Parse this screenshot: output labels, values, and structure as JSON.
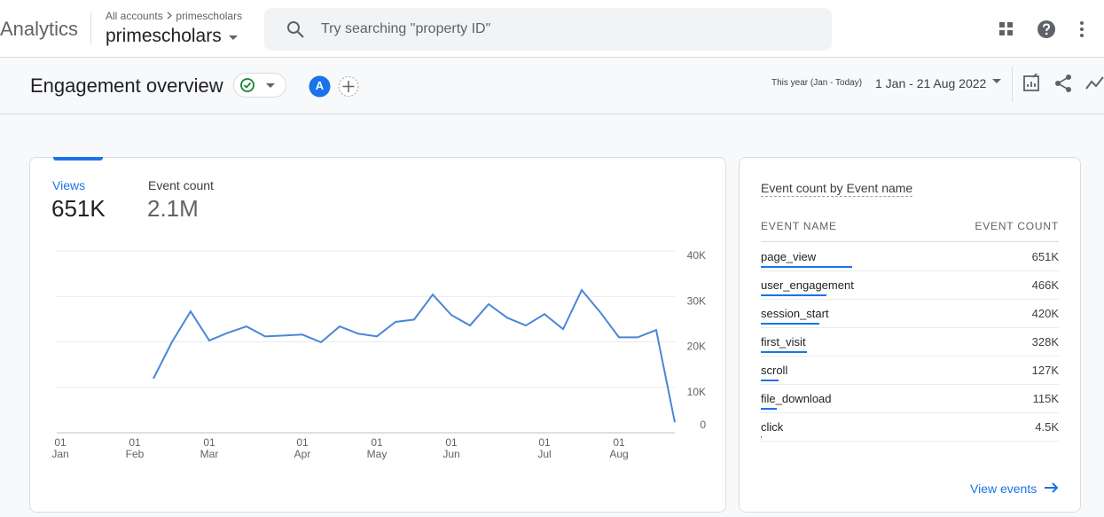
{
  "header": {
    "product": "Analytics",
    "breadcrumb": [
      "All accounts",
      "primescholars"
    ],
    "property": "primescholars",
    "search_placeholder": "Try searching \"property ID\""
  },
  "page": {
    "title": "Engagement overview",
    "avatar": "A",
    "date_label": "This year (Jan - Today)",
    "date_range": "1 Jan - 21 Aug 2022"
  },
  "card": {
    "tabs": [
      {
        "label": "Views",
        "value": "651K"
      },
      {
        "label": "Event count",
        "value": "2.1M"
      }
    ]
  },
  "chart_data": {
    "type": "line",
    "categories": [
      "01 Jan",
      null,
      null,
      null,
      "01 Feb",
      null,
      null,
      null,
      "01 Mar",
      null,
      null,
      null,
      null,
      "01 Apr",
      null,
      null,
      null,
      "01 May",
      null,
      null,
      null,
      "01 Jun",
      null,
      null,
      null,
      null,
      "01 Jul",
      null,
      null,
      null,
      "01 Aug",
      null,
      null,
      null
    ],
    "series": [
      {
        "name": "Views",
        "color": "#4a86d8",
        "values": [
          null,
          null,
          null,
          null,
          null,
          11900,
          20000,
          26700,
          20300,
          22000,
          23400,
          21200,
          21400,
          21600,
          19900,
          23400,
          21800,
          21200,
          24400,
          24900,
          30400,
          25900,
          23600,
          28300,
          25300,
          23600,
          26100,
          22800,
          31400,
          26500,
          21000,
          21000,
          22600,
          2300
        ]
      }
    ],
    "ylim": [
      0,
      40000
    ],
    "yticks": [
      0,
      {
        "value": 10000,
        "label": "10K"
      },
      {
        "value": 20000,
        "label": "20K"
      },
      {
        "value": 30000,
        "label": "30K"
      },
      {
        "value": 40000,
        "label": "40K"
      }
    ],
    "grid": true,
    "y_axis_side": "right"
  },
  "table": {
    "title": "Event count by Event name",
    "columns": [
      "EVENT NAME",
      "EVENT COUNT"
    ],
    "rows": [
      {
        "name": "page_view",
        "count": "651K",
        "value": 651000
      },
      {
        "name": "user_engagement",
        "count": "466K",
        "value": 466000
      },
      {
        "name": "session_start",
        "count": "420K",
        "value": 420000
      },
      {
        "name": "first_visit",
        "count": "328K",
        "value": 328000
      },
      {
        "name": "scroll",
        "count": "127K",
        "value": 127000
      },
      {
        "name": "file_download",
        "count": "115K",
        "value": 115000
      },
      {
        "name": "click",
        "count": "4.5K",
        "value": 4500
      }
    ],
    "bar_color": "#1a73e8",
    "link": "View events"
  }
}
